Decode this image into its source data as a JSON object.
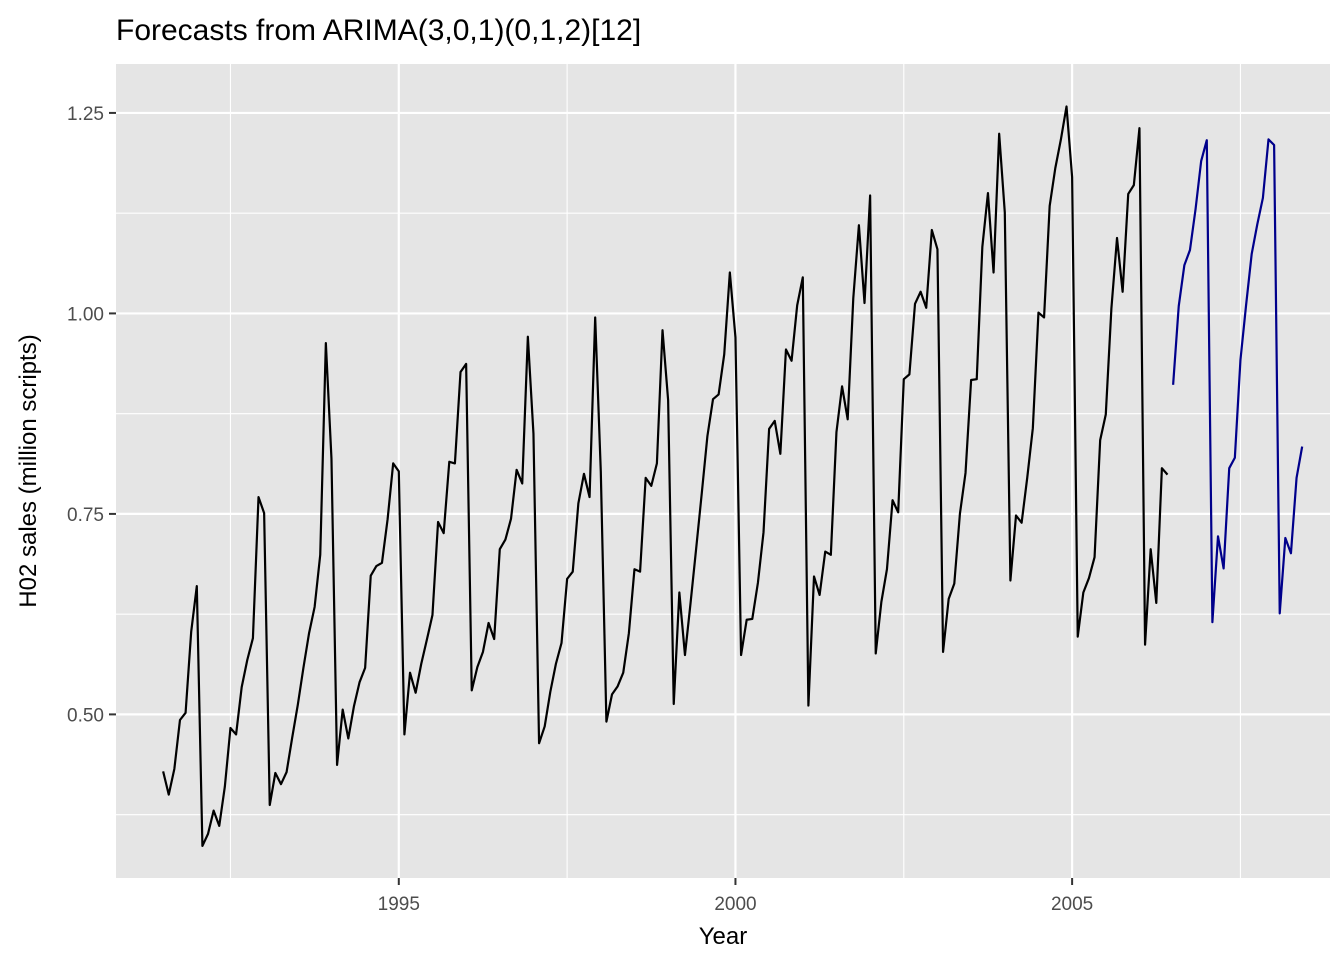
{
  "chart_data": {
    "type": "line",
    "title": "Forecasts from ARIMA(3,0,1)(0,1,2)[12]",
    "xlabel": "Year",
    "ylabel": "H02 sales (million scripts)",
    "xlim": [
      1990.8,
      2008.83
    ],
    "ylim": [
      0.296,
      1.311
    ],
    "x_ticks": [
      1995,
      2000,
      2005
    ],
    "x_tick_labels": [
      "1995",
      "2000",
      "2005"
    ],
    "x_minor_ticks": [
      1992.5,
      1997.5,
      2002.5,
      2007.5
    ],
    "y_ticks": [
      0.5,
      0.75,
      1.0,
      1.25
    ],
    "y_tick_labels": [
      "0.50",
      "0.75",
      "1.00",
      "1.25"
    ],
    "y_minor_ticks": [
      0.375,
      0.625,
      0.875,
      1.125
    ],
    "grid": true,
    "legend": "none",
    "colors": {
      "panel": "#e5e5e5",
      "grid": "#ffffff",
      "observed": "#000000",
      "forecast": "#00008b",
      "tick": "#333333"
    },
    "series": [
      {
        "role": "observed",
        "start_year": 1991,
        "start_month": 7,
        "frequency": 12,
        "values": [
          0.429,
          0.4,
          0.432,
          0.493,
          0.502,
          0.603,
          0.66,
          0.336,
          0.351,
          0.38,
          0.361,
          0.41,
          0.483,
          0.475,
          0.534,
          0.568,
          0.595,
          0.771,
          0.751,
          0.387,
          0.427,
          0.413,
          0.428,
          0.471,
          0.512,
          0.558,
          0.601,
          0.634,
          0.699,
          0.963,
          0.819,
          0.437,
          0.506,
          0.47,
          0.51,
          0.54,
          0.558,
          0.673,
          0.685,
          0.689,
          0.743,
          0.813,
          0.803,
          0.475,
          0.552,
          0.527,
          0.563,
          0.593,
          0.624,
          0.74,
          0.726,
          0.815,
          0.813,
          0.927,
          0.937,
          0.53,
          0.559,
          0.578,
          0.614,
          0.594,
          0.706,
          0.718,
          0.744,
          0.805,
          0.788,
          0.971,
          0.85,
          0.464,
          0.485,
          0.528,
          0.563,
          0.589,
          0.669,
          0.678,
          0.763,
          0.8,
          0.771,
          0.995,
          0.803,
          0.491,
          0.525,
          0.535,
          0.552,
          0.601,
          0.681,
          0.678,
          0.795,
          0.785,
          0.813,
          0.979,
          0.892,
          0.513,
          0.652,
          0.574,
          0.639,
          0.707,
          0.776,
          0.847,
          0.893,
          0.899,
          0.949,
          1.051,
          0.97,
          0.574,
          0.618,
          0.619,
          0.664,
          0.727,
          0.856,
          0.866,
          0.825,
          0.955,
          0.941,
          1.01,
          1.045,
          0.511,
          0.672,
          0.649,
          0.703,
          0.699,
          0.852,
          0.909,
          0.868,
          1.019,
          1.11,
          1.013,
          1.147,
          0.576,
          0.64,
          0.681,
          0.767,
          0.752,
          0.918,
          0.924,
          1.012,
          1.027,
          1.007,
          1.104,
          1.08,
          0.578,
          0.644,
          0.663,
          0.75,
          0.801,
          0.917,
          0.918,
          1.083,
          1.15,
          1.051,
          1.224,
          1.126,
          0.667,
          0.748,
          0.739,
          0.795,
          0.857,
          1.001,
          0.995,
          1.134,
          1.181,
          1.217,
          1.258,
          1.17,
          0.597,
          0.652,
          0.67,
          0.696,
          0.842,
          0.874,
          1.006,
          1.094,
          1.027,
          1.149,
          1.16,
          1.231,
          0.587,
          0.706,
          0.639,
          0.807,
          0.799
        ]
      },
      {
        "role": "forecast",
        "start_year": 2006,
        "start_month": 7,
        "frequency": 12,
        "values": [
          0.911,
          1.009,
          1.06,
          1.079,
          1.13,
          1.19,
          1.216,
          0.615,
          0.722,
          0.682,
          0.807,
          0.82,
          0.942,
          1.01,
          1.074,
          1.111,
          1.144,
          1.217,
          1.21,
          0.626,
          0.72,
          0.701,
          0.795,
          0.834
        ]
      }
    ]
  }
}
